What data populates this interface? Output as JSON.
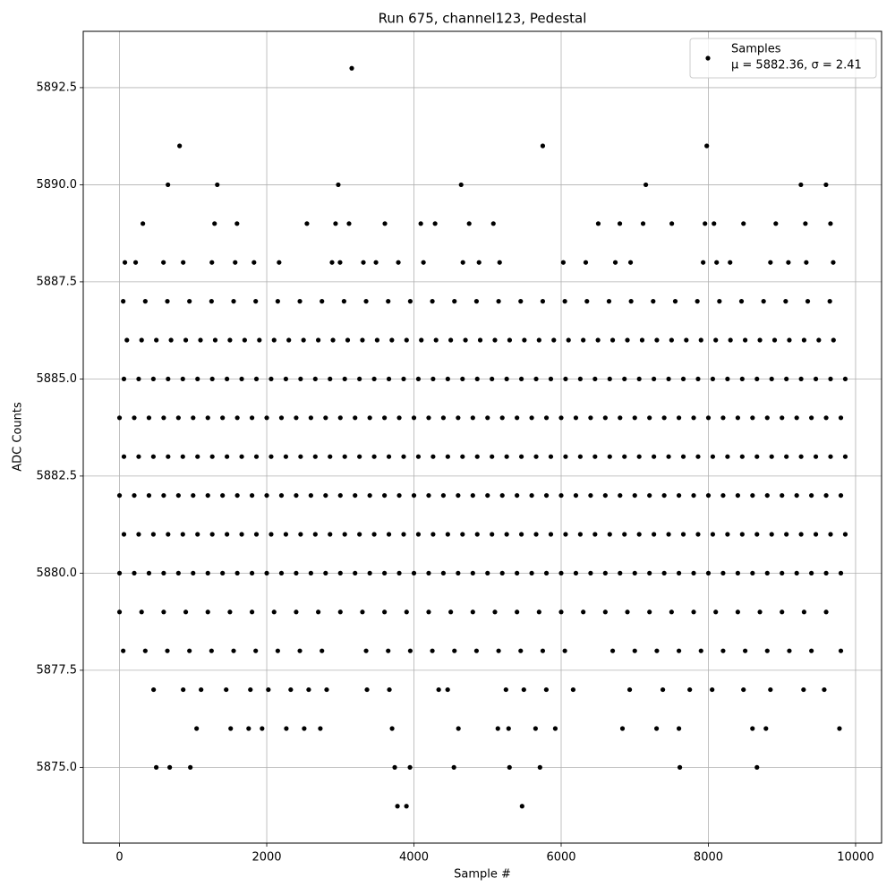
{
  "chart_data": {
    "type": "scatter",
    "title": "Run 675, channel123, Pedestal",
    "x_label": "Sample #",
    "y_label": "ADC Counts",
    "xlim": [
      -493,
      10353
    ],
    "ylim": [
      5873.05,
      5893.95
    ],
    "xticks": [
      0,
      2000,
      4000,
      6000,
      8000,
      10000
    ],
    "yticks": [
      {
        "value": 5875,
        "label": "5875.0"
      },
      {
        "value": 5877.5,
        "label": "5877.5"
      },
      {
        "value": 5880,
        "label": "5880.0"
      },
      {
        "value": 5882.5,
        "label": "5882.5"
      },
      {
        "value": 5885,
        "label": "5885.0"
      },
      {
        "value": 5887.5,
        "label": "5887.5"
      },
      {
        "value": 5890,
        "label": "5890.0"
      },
      {
        "value": 5892.5,
        "label": "5892.5"
      }
    ],
    "grid": true,
    "legend": "upper right",
    "x": [
      3776,
      3898,
      5469,
      499,
      682,
      962,
      3739,
      3946,
      4543,
      5298,
      5712,
      7612,
      8660,
      1047,
      1510,
      1754,
      1937,
      2266,
      2509,
      2728,
      3703,
      4604,
      5140,
      5286,
      5652,
      5920,
      6833,
      7296,
      7600,
      8599,
      8782,
      9781,
      463,
      865,
      1108,
      1449,
      1778,
      2022,
      2326,
      2570,
      2814,
      3362,
      3666,
      4336,
      4458,
      5250,
      5493,
      5798,
      6163,
      6931,
      7381,
      7747,
      8051,
      8477,
      8843,
      9293,
      9574,
      50,
      350,
      650,
      950,
      1250,
      1550,
      1850,
      2150,
      2450,
      2750,
      3350,
      3650,
      3950,
      4250,
      4550,
      4850,
      5150,
      5450,
      5750,
      6050,
      6700,
      7000,
      7300,
      7600,
      7900,
      8200,
      8500,
      8800,
      9100,
      9400,
      9800,
      0,
      300,
      600,
      900,
      1200,
      1500,
      1800,
      2100,
      2400,
      2700,
      3000,
      3300,
      3600,
      3900,
      4200,
      4500,
      4800,
      5100,
      5400,
      5700,
      6000,
      6300,
      6600,
      6900,
      7200,
      7500,
      7800,
      8100,
      8400,
      8700,
      9000,
      9300,
      9600,
      0,
      200,
      400,
      600,
      800,
      1000,
      1200,
      1400,
      1600,
      1800,
      2000,
      2200,
      2400,
      2600,
      2800,
      3000,
      3200,
      3400,
      3600,
      3800,
      4000,
      4200,
      4400,
      4600,
      4800,
      5000,
      5200,
      5400,
      5600,
      5800,
      6000,
      6200,
      6400,
      6600,
      6800,
      7000,
      7200,
      7400,
      7600,
      7800,
      8000,
      8200,
      8400,
      8600,
      8800,
      9000,
      9200,
      9400,
      9600,
      9800,
      60,
      260,
      460,
      660,
      860,
      1060,
      1260,
      1460,
      1660,
      1860,
      2060,
      2260,
      2460,
      2660,
      2860,
      3060,
      3260,
      3460,
      3660,
      3860,
      4060,
      4260,
      4460,
      4660,
      4860,
      5060,
      5260,
      5460,
      5660,
      5860,
      6060,
      6260,
      6460,
      6660,
      6860,
      7060,
      7260,
      7460,
      7660,
      7860,
      8060,
      8260,
      8460,
      8660,
      8860,
      9060,
      9260,
      9460,
      9660,
      9860,
      0,
      200,
      400,
      600,
      800,
      1000,
      1200,
      1400,
      1600,
      1800,
      2000,
      2200,
      2400,
      2600,
      2800,
      3000,
      3200,
      3400,
      3600,
      3800,
      4000,
      4200,
      4400,
      4600,
      4800,
      5000,
      5200,
      5400,
      5600,
      5800,
      6000,
      6200,
      6400,
      6600,
      6800,
      7000,
      7200,
      7400,
      7600,
      7800,
      8000,
      8200,
      8400,
      8600,
      8800,
      9000,
      9200,
      9400,
      9600,
      9800,
      60,
      260,
      460,
      660,
      860,
      1060,
      1260,
      1460,
      1660,
      1860,
      2060,
      2260,
      2460,
      2660,
      2860,
      3060,
      3260,
      3460,
      3660,
      3860,
      4060,
      4260,
      4460,
      4660,
      4860,
      5060,
      5260,
      5460,
      5660,
      5860,
      6060,
      6260,
      6460,
      6660,
      6860,
      7060,
      7260,
      7460,
      7660,
      7860,
      8060,
      8260,
      8460,
      8660,
      8860,
      9060,
      9260,
      9460,
      9660,
      9860,
      0,
      200,
      400,
      600,
      800,
      1000,
      1200,
      1400,
      1600,
      1800,
      2000,
      2200,
      2400,
      2600,
      2800,
      3000,
      3200,
      3400,
      3600,
      3800,
      4000,
      4200,
      4400,
      4600,
      4800,
      5000,
      5200,
      5400,
      5600,
      5800,
      6000,
      6200,
      6400,
      6600,
      6800,
      7000,
      7200,
      7400,
      7600,
      7800,
      8000,
      8200,
      8400,
      8600,
      8800,
      9000,
      9200,
      9400,
      9600,
      9800,
      60,
      260,
      460,
      660,
      860,
      1060,
      1260,
      1460,
      1660,
      1860,
      2060,
      2260,
      2460,
      2660,
      2860,
      3060,
      3260,
      3460,
      3660,
      3860,
      4060,
      4260,
      4460,
      4660,
      4860,
      5060,
      5260,
      5460,
      5660,
      5860,
      6060,
      6260,
      6460,
      6660,
      6860,
      7060,
      7260,
      7460,
      7660,
      7860,
      8060,
      8260,
      8460,
      8660,
      8860,
      9060,
      9260,
      9460,
      9660,
      9860,
      100,
      300,
      500,
      700,
      900,
      1100,
      1300,
      1500,
      1700,
      1900,
      2100,
      2300,
      2500,
      2700,
      2900,
      3100,
      3300,
      3500,
      3700,
      3900,
      4100,
      4300,
      4500,
      4700,
      4900,
      5100,
      5300,
      5500,
      5700,
      5900,
      6100,
      6300,
      6500,
      6700,
      6900,
      7100,
      7300,
      7500,
      7700,
      7900,
      8100,
      8300,
      8500,
      8700,
      8900,
      9100,
      9300,
      9500,
      9700,
      50,
      350,
      650,
      950,
      1250,
      1550,
      1850,
      2150,
      2450,
      2750,
      3050,
      3350,
      3650,
      3950,
      4250,
      4550,
      4850,
      5150,
      5450,
      5750,
      6050,
      6350,
      6650,
      6950,
      7250,
      7550,
      7850,
      8150,
      8450,
      8750,
      9050,
      9350,
      9650,
      73,
      219,
      597,
      865,
      1255,
      1571,
      1827,
      2168,
      2887,
      2996,
      3313,
      3484,
      3788,
      4129,
      4665,
      4884,
      5164,
      6029,
      6334,
      6736,
      6943,
      7929,
      8112,
      8295,
      8843,
      9087,
      9330,
      9696,
      317,
      1291,
      1596,
      2546,
      2935,
      3118,
      3605,
      4093,
      4287,
      4750,
      5079,
      6504,
      6797,
      7113,
      7503,
      7954,
      8076,
      8477,
      8916,
      9318,
      9659,
      658,
      1328,
      2972,
      4641,
      7150,
      9257,
      9598,
      816,
      5750,
      7978,
      3155
    ],
    "series": [
      {
        "name": "Samples",
        "stats": "μ = 5882.36, σ = 2.41",
        "color": "#000000",
        "values": [
          5874,
          5874,
          5874,
          5875,
          5875,
          5875,
          5875,
          5875,
          5875,
          5875,
          5875,
          5875,
          5875,
          5876,
          5876,
          5876,
          5876,
          5876,
          5876,
          5876,
          5876,
          5876,
          5876,
          5876,
          5876,
          5876,
          5876,
          5876,
          5876,
          5876,
          5876,
          5876,
          5877,
          5877,
          5877,
          5877,
          5877,
          5877,
          5877,
          5877,
          5877,
          5877,
          5877,
          5877,
          5877,
          5877,
          5877,
          5877,
          5877,
          5877,
          5877,
          5877,
          5877,
          5877,
          5877,
          5877,
          5877,
          5878,
          5878,
          5878,
          5878,
          5878,
          5878,
          5878,
          5878,
          5878,
          5878,
          5878,
          5878,
          5878,
          5878,
          5878,
          5878,
          5878,
          5878,
          5878,
          5878,
          5878,
          5878,
          5878,
          5878,
          5878,
          5878,
          5878,
          5878,
          5878,
          5878,
          5878,
          5879,
          5879,
          5879,
          5879,
          5879,
          5879,
          5879,
          5879,
          5879,
          5879,
          5879,
          5879,
          5879,
          5879,
          5879,
          5879,
          5879,
          5879,
          5879,
          5879,
          5879,
          5879,
          5879,
          5879,
          5879,
          5879,
          5879,
          5879,
          5879,
          5879,
          5879,
          5879,
          5879,
          5880,
          5880,
          5880,
          5880,
          5880,
          5880,
          5880,
          5880,
          5880,
          5880,
          5880,
          5880,
          5880,
          5880,
          5880,
          5880,
          5880,
          5880,
          5880,
          5880,
          5880,
          5880,
          5880,
          5880,
          5880,
          5880,
          5880,
          5880,
          5880,
          5880,
          5880,
          5880,
          5880,
          5880,
          5880,
          5880,
          5880,
          5880,
          5880,
          5880,
          5880,
          5880,
          5880,
          5880,
          5880,
          5880,
          5880,
          5880,
          5880,
          5880,
          5881,
          5881,
          5881,
          5881,
          5881,
          5881,
          5881,
          5881,
          5881,
          5881,
          5881,
          5881,
          5881,
          5881,
          5881,
          5881,
          5881,
          5881,
          5881,
          5881,
          5881,
          5881,
          5881,
          5881,
          5881,
          5881,
          5881,
          5881,
          5881,
          5881,
          5881,
          5881,
          5881,
          5881,
          5881,
          5881,
          5881,
          5881,
          5881,
          5881,
          5881,
          5881,
          5881,
          5881,
          5881,
          5881,
          5881,
          5881,
          5881,
          5881,
          5882,
          5882,
          5882,
          5882,
          5882,
          5882,
          5882,
          5882,
          5882,
          5882,
          5882,
          5882,
          5882,
          5882,
          5882,
          5882,
          5882,
          5882,
          5882,
          5882,
          5882,
          5882,
          5882,
          5882,
          5882,
          5882,
          5882,
          5882,
          5882,
          5882,
          5882,
          5882,
          5882,
          5882,
          5882,
          5882,
          5882,
          5882,
          5882,
          5882,
          5882,
          5882,
          5882,
          5882,
          5882,
          5882,
          5882,
          5882,
          5882,
          5882,
          5883,
          5883,
          5883,
          5883,
          5883,
          5883,
          5883,
          5883,
          5883,
          5883,
          5883,
          5883,
          5883,
          5883,
          5883,
          5883,
          5883,
          5883,
          5883,
          5883,
          5883,
          5883,
          5883,
          5883,
          5883,
          5883,
          5883,
          5883,
          5883,
          5883,
          5883,
          5883,
          5883,
          5883,
          5883,
          5883,
          5883,
          5883,
          5883,
          5883,
          5883,
          5883,
          5883,
          5883,
          5883,
          5883,
          5883,
          5883,
          5883,
          5883,
          5884,
          5884,
          5884,
          5884,
          5884,
          5884,
          5884,
          5884,
          5884,
          5884,
          5884,
          5884,
          5884,
          5884,
          5884,
          5884,
          5884,
          5884,
          5884,
          5884,
          5884,
          5884,
          5884,
          5884,
          5884,
          5884,
          5884,
          5884,
          5884,
          5884,
          5884,
          5884,
          5884,
          5884,
          5884,
          5884,
          5884,
          5884,
          5884,
          5884,
          5884,
          5884,
          5884,
          5884,
          5884,
          5884,
          5884,
          5884,
          5884,
          5884,
          5885,
          5885,
          5885,
          5885,
          5885,
          5885,
          5885,
          5885,
          5885,
          5885,
          5885,
          5885,
          5885,
          5885,
          5885,
          5885,
          5885,
          5885,
          5885,
          5885,
          5885,
          5885,
          5885,
          5885,
          5885,
          5885,
          5885,
          5885,
          5885,
          5885,
          5885,
          5885,
          5885,
          5885,
          5885,
          5885,
          5885,
          5885,
          5885,
          5885,
          5885,
          5885,
          5885,
          5885,
          5885,
          5885,
          5885,
          5885,
          5885,
          5885,
          5886,
          5886,
          5886,
          5886,
          5886,
          5886,
          5886,
          5886,
          5886,
          5886,
          5886,
          5886,
          5886,
          5886,
          5886,
          5886,
          5886,
          5886,
          5886,
          5886,
          5886,
          5886,
          5886,
          5886,
          5886,
          5886,
          5886,
          5886,
          5886,
          5886,
          5886,
          5886,
          5886,
          5886,
          5886,
          5886,
          5886,
          5886,
          5886,
          5886,
          5886,
          5886,
          5886,
          5886,
          5886,
          5886,
          5886,
          5886,
          5886,
          5887,
          5887,
          5887,
          5887,
          5887,
          5887,
          5887,
          5887,
          5887,
          5887,
          5887,
          5887,
          5887,
          5887,
          5887,
          5887,
          5887,
          5887,
          5887,
          5887,
          5887,
          5887,
          5887,
          5887,
          5887,
          5887,
          5887,
          5887,
          5887,
          5887,
          5887,
          5887,
          5887,
          5888,
          5888,
          5888,
          5888,
          5888,
          5888,
          5888,
          5888,
          5888,
          5888,
          5888,
          5888,
          5888,
          5888,
          5888,
          5888,
          5888,
          5888,
          5888,
          5888,
          5888,
          5888,
          5888,
          5888,
          5888,
          5888,
          5888,
          5888,
          5889,
          5889,
          5889,
          5889,
          5889,
          5889,
          5889,
          5889,
          5889,
          5889,
          5889,
          5889,
          5889,
          5889,
          5889,
          5889,
          5889,
          5889,
          5889,
          5889,
          5889,
          5890,
          5890,
          5890,
          5890,
          5890,
          5890,
          5890,
          5891,
          5891,
          5891,
          5893
        ]
      }
    ]
  }
}
